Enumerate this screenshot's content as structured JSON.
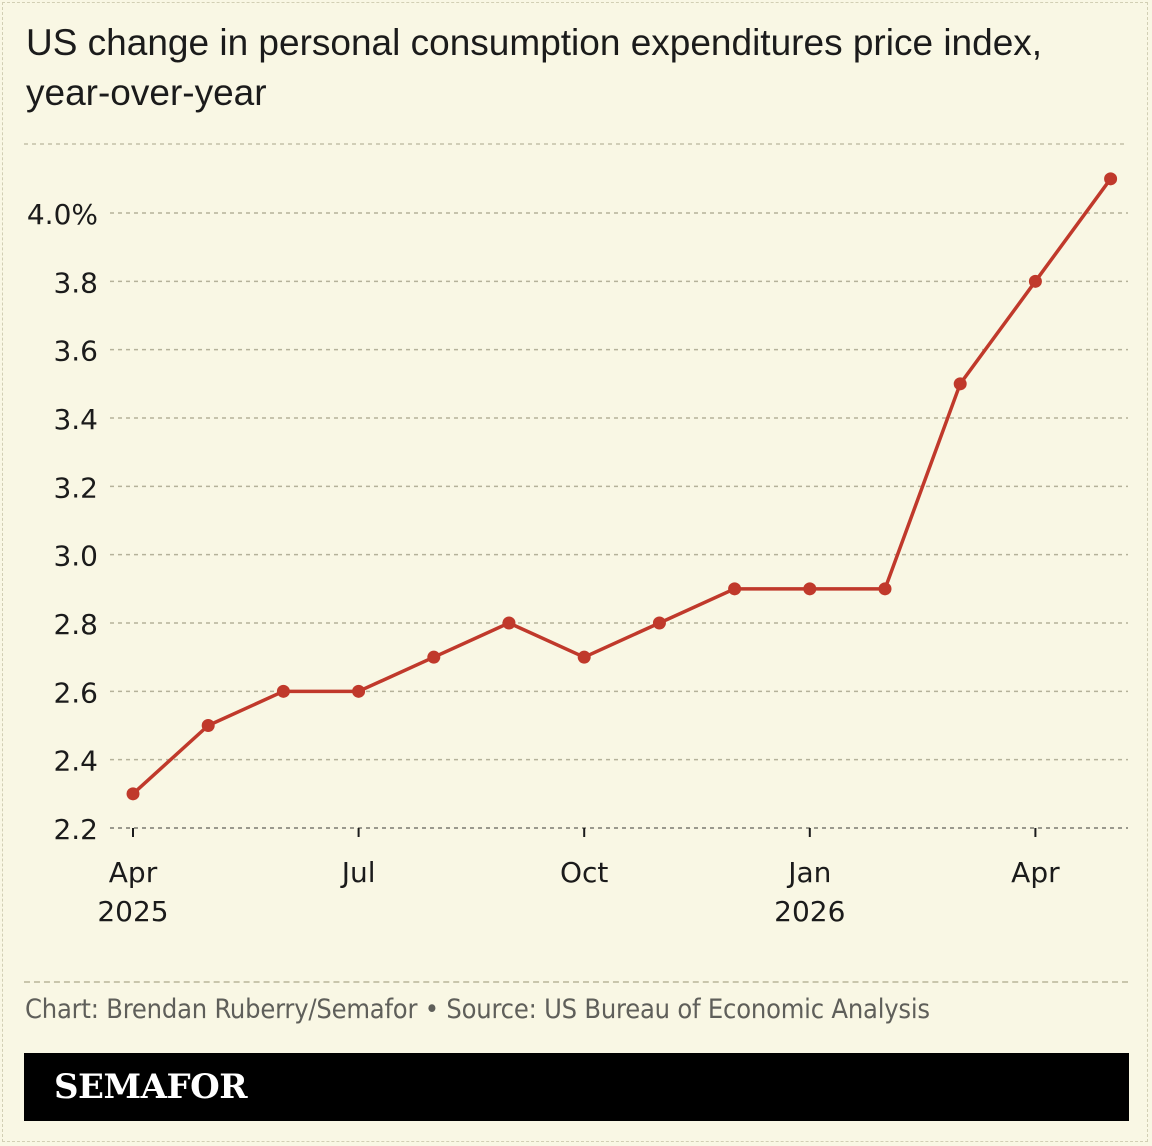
{
  "header": {
    "title": "US change in personal consumption expenditures price index, year-over-year"
  },
  "chart_data": {
    "type": "line",
    "x": [
      "2025-04",
      "2025-05",
      "2025-06",
      "2025-07",
      "2025-08",
      "2025-09",
      "2025-10",
      "2025-11",
      "2025-12",
      "2026-01",
      "2026-02",
      "2026-03",
      "2026-04",
      "2026-05"
    ],
    "values": [
      2.3,
      2.5,
      2.6,
      2.6,
      2.7,
      2.8,
      2.7,
      2.8,
      2.9,
      2.9,
      2.9,
      3.5,
      3.8,
      4.1
    ],
    "ylim": [
      2.2,
      4.2
    ],
    "yticks": [
      {
        "value": 2.2,
        "label": "2.2"
      },
      {
        "value": 2.4,
        "label": "2.4"
      },
      {
        "value": 2.6,
        "label": "2.6"
      },
      {
        "value": 2.8,
        "label": "2.8"
      },
      {
        "value": 3.0,
        "label": "3.0"
      },
      {
        "value": 3.2,
        "label": "3.2"
      },
      {
        "value": 3.4,
        "label": "3.4"
      },
      {
        "value": 3.6,
        "label": "3.6"
      },
      {
        "value": 3.8,
        "label": "3.8"
      },
      {
        "value": 4.0,
        "label": "4.0%"
      }
    ],
    "xticks": [
      {
        "month": "2025-04",
        "label": "Apr",
        "sublabel": "2025"
      },
      {
        "month": "2025-07",
        "label": "Jul",
        "sublabel": ""
      },
      {
        "month": "2025-10",
        "label": "Oct",
        "sublabel": ""
      },
      {
        "month": "2026-01",
        "label": "Jan",
        "sublabel": "2026"
      },
      {
        "month": "2026-04",
        "label": "Apr",
        "sublabel": ""
      }
    ],
    "grid": true,
    "line_color": "#c0392b"
  },
  "footer": {
    "credit": "Chart: Brendan Ruberry/Semafor • Source: US Bureau of Economic Analysis",
    "brand": "SEMAFOR"
  }
}
